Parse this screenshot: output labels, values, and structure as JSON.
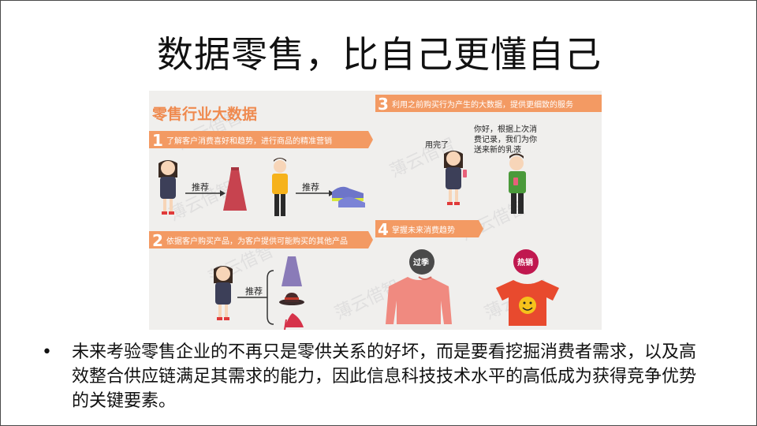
{
  "slide": {
    "title": "数据零售，比自己更懂自己",
    "bullet_marker": "•",
    "bullet_text": "未来考验零售企业的不再只是零供关系的好坏，而是要看挖掘消费者需求，以及高效整合供应链满足其需求的能力，因此信息科技技术水平的高低成为获得竞争优势的关键要素。"
  },
  "infographic": {
    "heading": "零售行业大数据",
    "watermark": "薄云借智",
    "section1": {
      "number": "1",
      "label": "了解客户消费喜好和趋势，进行商品的精准营销",
      "arrow1": "推荐",
      "arrow2": "推荐"
    },
    "section2": {
      "number": "2",
      "label": "依据客户购买产品，为客户提供可能购买的其他产品",
      "arrow": "推荐"
    },
    "section3": {
      "number": "3",
      "label": "利用之前购买行为产生的大数据，提供更细致的服务",
      "woman_speech": "用完了",
      "man_speech_1": "你好，根据上次消",
      "man_speech_2": "费记录，我们为你",
      "man_speech_3": "送来新的乳液"
    },
    "section4": {
      "number": "4",
      "label": "掌握未来消费趋势",
      "badge_old": "过季",
      "badge_hot": "热销"
    },
    "colors": {
      "accent_orange": "#f0915a",
      "banner_orange": "#f39a63",
      "badge_old": "#4a4a4a",
      "badge_hot": "#c0184f",
      "sweater": "#f08a80",
      "tshirt": "#e84a2e"
    }
  }
}
